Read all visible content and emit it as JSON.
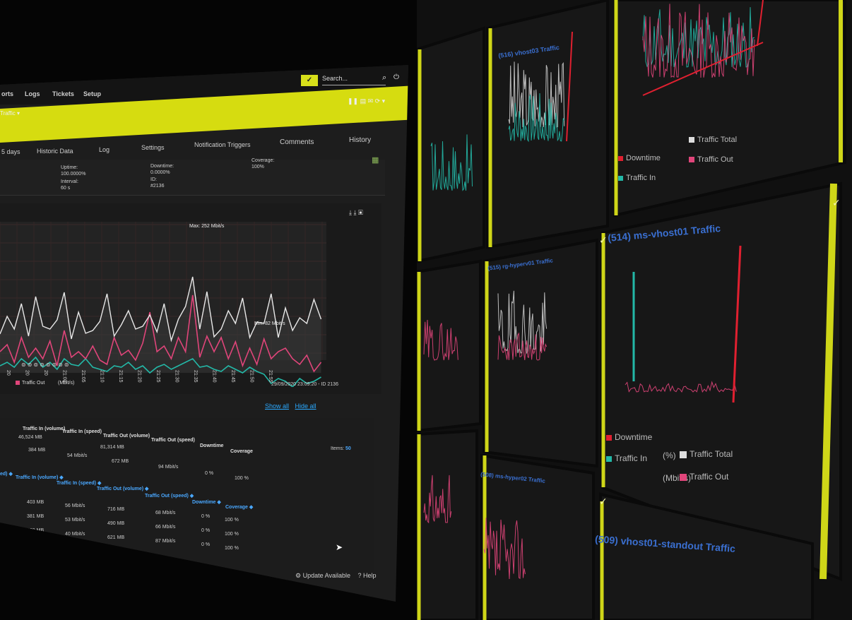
{
  "nav": {
    "items": [
      "orts",
      "Logs",
      "Tickets",
      "Setup"
    ],
    "search_placeholder": "Search..."
  },
  "sensor_bar": {
    "breadcrumb": "Traffic ▾"
  },
  "tabs": [
    {
      "label": "5 days"
    },
    {
      "label": "Historic Data"
    },
    {
      "label": "Log"
    },
    {
      "label": "Settings"
    },
    {
      "label": "Notification Triggers"
    },
    {
      "label": "Comments"
    },
    {
      "label": "History"
    }
  ],
  "info": {
    "uptime_label": "Uptime:",
    "uptime_value": "100.0000%",
    "downtime_label": "Downtime:",
    "downtime_value": "0.0000%",
    "coverage_label": "Coverage:",
    "coverage_value": "100%",
    "interval_label": "Interval:",
    "interval_value": "60 s",
    "id_label": "ID:",
    "id_value": "#2136"
  },
  "chart_data": {
    "type": "line",
    "x": [
      "20",
      "20",
      "20",
      "21:00",
      "21:05",
      "21:10",
      "21:15",
      "21:20",
      "21:25",
      "21:30",
      "21:35",
      "21:40",
      "21:45",
      "21:50",
      "21:55"
    ],
    "series": [
      {
        "name": "Traffic Total",
        "color": "#e8e8e8"
      },
      {
        "name": "Traffic Out",
        "color": "#e0457a"
      },
      {
        "name": "Traffic In",
        "color": "#23b8a7"
      }
    ],
    "annotations": {
      "max": "Max: 252 Mbit/s",
      "min": "Min: 82 Mbit/s"
    },
    "footer": "29/09/2020 23:09:20 - ID 2136",
    "unit": "(Mbit/s)"
  },
  "legend": {
    "traffic_out": "Traffic Out",
    "unit": "(Mbit/s)"
  },
  "links": {
    "show_all": "Show all",
    "hide_all": "Hide all"
  },
  "summary_table": {
    "headers": [
      "Traffic In (volume)",
      "Traffic In (speed)",
      "Traffic Out (volume)",
      "Traffic Out (speed)",
      "Downtime",
      "Coverage"
    ],
    "row": [
      "46,524 MB",
      "384 MB",
      "54 Mbit/s",
      "81,314 MB",
      "672 MB",
      "94 Mbit/s",
      "0 %",
      "100 %"
    ]
  },
  "detail_table": {
    "items_label": "Items:",
    "items_value": "50",
    "headers": [
      "ed) ◆",
      "Traffic In (volume) ◆",
      "Traffic In (speed) ◆",
      "Traffic Out (volume) ◆",
      "Traffic Out (speed) ◆",
      "Downtime ◆",
      "Coverage ◆"
    ],
    "rows": [
      [
        "403 MB",
        "56 Mbit/s",
        "716 MB",
        "68 Mbit/s",
        "0 %",
        "100 %"
      ],
      [
        "381 MB",
        "53 Mbit/s",
        "490 MB",
        "66 Mbit/s",
        "0 %",
        "100 %"
      ],
      [
        "289 MB",
        "40 Mbit/s",
        "621 MB",
        "87 Mbit/s",
        "0 %",
        "100 %"
      ]
    ]
  },
  "status": {
    "update": "Update Available",
    "help": "Help"
  },
  "right_panels": [
    {
      "title": "(516) vhost03 Traffic"
    },
    {
      "title": "(514) ms-vhost01 Traffic"
    },
    {
      "title": "(515) rg-hyperv01 Traffic"
    },
    {
      "title": "(509) vhost01-standout Traffic"
    },
    {
      "title": "(508) ms-hyper02 Traffic"
    }
  ],
  "right_legend": {
    "downtime": "Downtime",
    "traffic_in": "Traffic In",
    "traffic_total": "Traffic Total",
    "traffic_out": "Traffic Out",
    "percent": "(%)",
    "mbits": "(Mbit/s)"
  }
}
